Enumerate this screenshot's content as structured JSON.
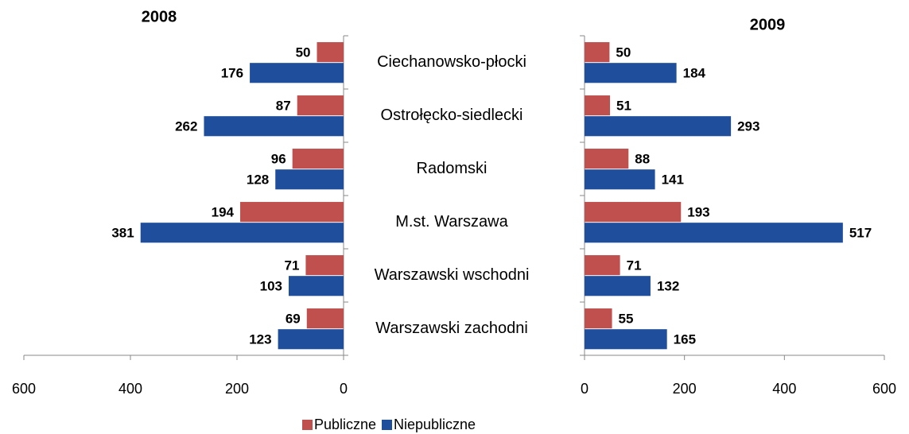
{
  "chart_data": [
    {
      "type": "bar",
      "orientation": "horizontal",
      "title": "2008",
      "categories": [
        "Ciechanowsko-płocki",
        "Ostrołęcko-siedlecki",
        "Radomski",
        "M.st. Warszawa",
        "Warszawski wschodni",
        "Warszawski zachodni"
      ],
      "series": [
        {
          "name": "Publiczne",
          "color": "#c0504d",
          "values": [
            50,
            87,
            96,
            194,
            71,
            69
          ]
        },
        {
          "name": "Niepubliczne",
          "color": "#1f4e9c",
          "values": [
            176,
            262,
            128,
            381,
            103,
            123
          ]
        }
      ],
      "xlim": [
        600,
        0
      ],
      "xticks": [
        600,
        400,
        200,
        0
      ]
    },
    {
      "type": "bar",
      "orientation": "horizontal",
      "title": "2009",
      "series": [
        {
          "color": "#c0504d",
          "values": [
            50,
            51,
            88,
            193,
            71,
            55
          ]
        },
        {
          "color": "#1f4e9c",
          "values": [
            184,
            293,
            141,
            517,
            132,
            165
          ]
        }
      ],
      "xlim": [
        0,
        600
      ],
      "xticks": [
        0,
        200,
        400,
        600
      ]
    }
  ]
}
